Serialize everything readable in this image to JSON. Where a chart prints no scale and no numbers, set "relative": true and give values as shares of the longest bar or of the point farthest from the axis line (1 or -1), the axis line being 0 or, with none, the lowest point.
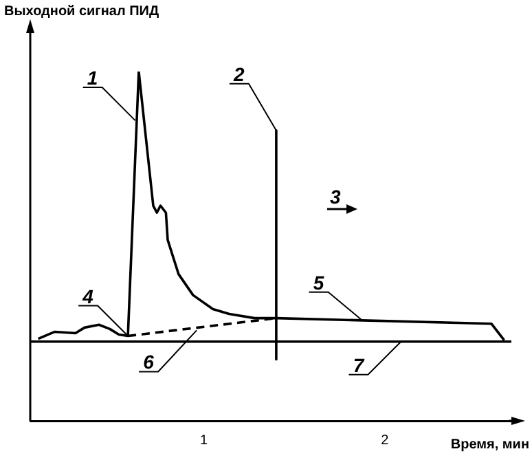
{
  "chart_data": {
    "type": "line",
    "relative": true,
    "xlabel": "Время, мин",
    "ylabel": "Выходной сигнал ПИД",
    "xlim": [
      0.04,
      2.7
    ],
    "xticks": [
      1,
      2
    ],
    "marker": "none",
    "legend": false,
    "grid": false,
    "series": [
      {
        "color": "#000000",
        "x": [
          0.084,
          0.176,
          0.29,
          0.34,
          0.42,
          0.48,
          0.53,
          0.58,
          0.64,
          0.72,
          0.74,
          0.76,
          0.79,
          0.8,
          0.86,
          0.94,
          1.05,
          1.14,
          1.28,
          1.4,
          2.59,
          2.66
        ],
        "values": [
          0.235,
          0.255,
          0.251,
          0.267,
          0.275,
          0.263,
          0.247,
          0.243,
          1,
          0.616,
          0.596,
          0.616,
          0.596,
          0.518,
          0.42,
          0.36,
          0.32,
          0.306,
          0.294,
          0.294,
          0.278,
          0.231
        ]
      },
      {
        "color": "#000000",
        "line_style": "dashed",
        "x": [
          0.58,
          1.4
        ],
        "values": [
          0.243,
          0.294
        ]
      },
      {
        "color": "#000000",
        "x": [
          1.4,
          1.4
        ],
        "values": [
          0.831,
          0.176
        ]
      },
      {
        "color": "#000000",
        "x": [
          0.04,
          2.7
        ],
        "values": [
          0.227,
          0.227
        ]
      }
    ],
    "annotations": [
      {
        "text": "1",
        "x": 0.62,
        "y": 0.86
      },
      {
        "text": "2",
        "x": 1.4,
        "y": 0.831
      },
      "3",
      {
        "text": "4",
        "x": 0.58,
        "y": 0.243
      },
      {
        "text": "5",
        "x": 1.87,
        "y": 0.29
      },
      {
        "text": "6",
        "x": 0.96,
        "y": 0.259
      },
      {
        "text": "7",
        "x": 2.09,
        "y": 0.227
      }
    ]
  }
}
